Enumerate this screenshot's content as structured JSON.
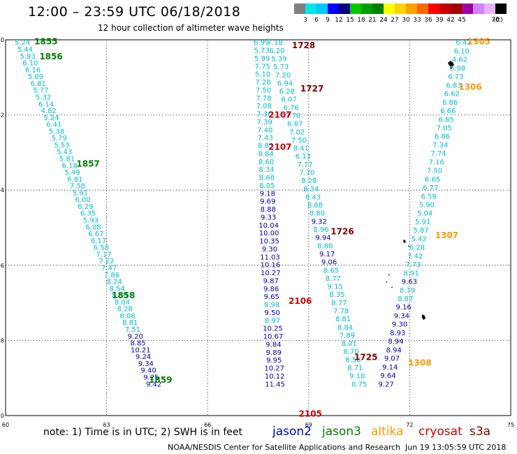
{
  "title": "12:00  –  23:59  UTC  06/18/2018",
  "subtitle": "12 hour collection of altimeter wave heights",
  "note": "note:  1) Time is in UTC;  2) SWH is in feet",
  "credit": "NOAA/NESDIS Center for Satellite Applications and Research",
  "timestamp": "Jun 19 13:05:59 UTC 2018",
  "satellites": [
    {
      "name": "jason2",
      "color": "#0000cc"
    },
    {
      "name": "jason3",
      "color": "#008000"
    },
    {
      "name": "altika",
      "color": "#ff9900"
    },
    {
      "name": "cryosat",
      "color": "#cc0000"
    },
    {
      "name": "s3a",
      "color": "#800000"
    }
  ],
  "legend": {
    "unit": "(ft)",
    "colors": [
      "#808080",
      "#00e5e5",
      "#00c8ff",
      "#0000ff",
      "#00007f",
      "#00c800",
      "#00a000",
      "#008000",
      "#ffff00",
      "#ffd200",
      "#ffa000",
      "#ff6400",
      "#ff0000",
      "#c80000",
      "#a00000",
      "#a000a0",
      "#d280ff",
      "#e6b4ff",
      "#000000"
    ],
    "labels": [
      "3",
      "6",
      "9",
      "12",
      "15",
      "18",
      "21",
      "24",
      "27",
      "30",
      "33",
      "36",
      "39",
      "42",
      "45",
      "70"
    ]
  },
  "axes": {
    "x_range": [
      60,
      75
    ],
    "y_range": [
      -10,
      0
    ],
    "x_ticks": [
      "60",
      "63",
      "66",
      "69",
      "72",
      "75"
    ],
    "y_ticks": [
      "0",
      "-2",
      "-4",
      "-6",
      "-8",
      "-10"
    ],
    "grid": "dotted"
  },
  "value_colors": {
    "c": "#00bcd4",
    "b": "#0000b0"
  },
  "tracks": [
    {
      "id": "track-1855-1859",
      "start": [
        60.5,
        -0.06
      ],
      "end": [
        64.4,
        -9.15
      ],
      "values": [
        [
          "5.24",
          "c"
        ],
        [
          "5.44",
          "c"
        ],
        [
          "5.93",
          "c"
        ],
        [
          "6.10",
          "c"
        ],
        [
          "6.16",
          "c"
        ],
        [
          "5.09",
          "c"
        ],
        [
          "6.81",
          "c"
        ],
        [
          "5.77",
          "c"
        ],
        [
          "5.32",
          "c"
        ],
        [
          "6.14",
          "c"
        ],
        [
          "4.82",
          "c"
        ],
        [
          "5.24",
          "c"
        ],
        [
          "6.41",
          "c"
        ],
        [
          "5.38",
          "c"
        ],
        [
          "5.79",
          "c"
        ],
        [
          "5.53",
          "c"
        ],
        [
          "5.43",
          "c"
        ],
        [
          "5.81",
          "c"
        ],
        [
          "6.18",
          "c"
        ],
        [
          "5.49",
          "c"
        ],
        [
          "6.81",
          "c"
        ],
        [
          "7.58",
          "c"
        ],
        [
          "5.91",
          "c"
        ],
        [
          "6.00",
          "c"
        ],
        [
          "6.29",
          "c"
        ],
        [
          "6.35",
          "c"
        ],
        [
          "5.93",
          "c"
        ],
        [
          "6.08",
          "c"
        ],
        [
          "6.67",
          "c"
        ],
        [
          "6.17",
          "c"
        ],
        [
          "6.58",
          "c"
        ],
        [
          "7.17",
          "c"
        ],
        [
          "7.22",
          "c"
        ],
        [
          "7.47",
          "c"
        ],
        [
          "7.86",
          "c"
        ],
        [
          "8.24",
          "c"
        ],
        [
          "8.54",
          "c"
        ],
        [
          "8.66",
          "c"
        ],
        [
          "8.04",
          "c"
        ],
        [
          "8.28",
          "c"
        ],
        [
          "8.08",
          "c"
        ],
        [
          "8.81",
          "c"
        ],
        [
          "7.51",
          "c"
        ],
        [
          "9.20",
          "b"
        ],
        [
          "8.85",
          "b"
        ],
        [
          "10.21",
          "b"
        ],
        [
          "9.24",
          "b"
        ],
        [
          "9.34",
          "b"
        ],
        [
          "9.40",
          "b"
        ],
        [
          "9.25",
          "b"
        ],
        [
          "9.42",
          "b"
        ]
      ]
    },
    {
      "id": "track-2105-2107",
      "start": [
        67.6,
        -0.06
      ],
      "end": [
        68.0,
        -9.15
      ],
      "values": [
        [
          "6.99",
          "c"
        ],
        [
          "5.73",
          "c"
        ],
        [
          "5.99",
          "c"
        ],
        [
          "7.75",
          "c"
        ],
        [
          "5.10",
          "c"
        ],
        [
          "7.28",
          "c"
        ],
        [
          "7.50",
          "c"
        ],
        [
          "7.78",
          "c"
        ],
        [
          "7.08",
          "c"
        ],
        [
          "7.36",
          "c"
        ],
        [
          "7.39",
          "c"
        ],
        [
          "7.40",
          "c"
        ],
        [
          "7.43",
          "c"
        ],
        [
          "8.83",
          "c"
        ],
        [
          "8.84",
          "c"
        ],
        [
          "8.60",
          "c"
        ],
        [
          "8.34",
          "c"
        ],
        [
          "8.68",
          "c"
        ],
        [
          "8.05",
          "c"
        ],
        [
          "9.18",
          "b"
        ],
        [
          "9.69",
          "b"
        ],
        [
          "8.88",
          "b"
        ],
        [
          "9.33",
          "b"
        ],
        [
          "10.04",
          "b"
        ],
        [
          "10.00",
          "b"
        ],
        [
          "10.35",
          "b"
        ],
        [
          "9.30",
          "b"
        ],
        [
          "11.03",
          "b"
        ],
        [
          "10.16",
          "b"
        ],
        [
          "10.27",
          "b"
        ],
        [
          "9.87",
          "b"
        ],
        [
          "9.86",
          "b"
        ],
        [
          "9.65",
          "b"
        ],
        [
          "8.98",
          "c"
        ],
        [
          "9.50",
          "b"
        ],
        [
          "8.97",
          "c"
        ],
        [
          "10.25",
          "b"
        ],
        [
          "10.67",
          "b"
        ],
        [
          "9.84",
          "b"
        ],
        [
          "9.89",
          "b"
        ],
        [
          "9.95",
          "b"
        ],
        [
          "10.27",
          "b"
        ],
        [
          "10.12",
          "b"
        ],
        [
          "11.45",
          "b"
        ]
      ]
    },
    {
      "id": "track-1725-1728",
      "start": [
        68.0,
        -0.06
      ],
      "end": [
        70.5,
        -9.15
      ],
      "values": [
        [
          "7.18",
          "c"
        ],
        [
          "6.20",
          "c"
        ],
        [
          "5.39",
          "c"
        ],
        [
          "5.73",
          "c"
        ],
        [
          "7.20",
          "c"
        ],
        [
          "6.94",
          "c"
        ],
        [
          "6.28",
          "c"
        ],
        [
          "6.07",
          "c"
        ],
        [
          "6.76",
          "c"
        ],
        [
          "7.70",
          "c"
        ],
        [
          "6.67",
          "c"
        ],
        [
          "7.02",
          "c"
        ],
        [
          "7.50",
          "c"
        ],
        [
          "8.41",
          "c"
        ],
        [
          "6.13",
          "c"
        ],
        [
          "7.77",
          "c"
        ],
        [
          "7.70",
          "c"
        ],
        [
          "8.28",
          "c"
        ],
        [
          "8.34",
          "c"
        ],
        [
          "8.43",
          "c"
        ],
        [
          "8.68",
          "c"
        ],
        [
          "8.80",
          "c"
        ],
        [
          "9.32",
          "b"
        ],
        [
          "8.96",
          "c"
        ],
        [
          "9.94",
          "b"
        ],
        [
          "8.80",
          "c"
        ],
        [
          "9.17",
          "b"
        ],
        [
          "9.06",
          "b"
        ],
        [
          "8.65",
          "c"
        ],
        [
          "8.77",
          "c"
        ],
        [
          "9.15",
          "c"
        ],
        [
          "8.35",
          "c"
        ],
        [
          "8.77",
          "c"
        ],
        [
          "7.78",
          "c"
        ],
        [
          "8.81",
          "c"
        ],
        [
          "8.84",
          "c"
        ],
        [
          "7.89",
          "c"
        ],
        [
          "8.01",
          "c"
        ],
        [
          "8.70",
          "c"
        ],
        [
          "8.58",
          "c"
        ],
        [
          "8.71",
          "c"
        ],
        [
          "9.10",
          "c"
        ],
        [
          "8.75",
          "c"
        ]
      ]
    },
    {
      "id": "track-1305-1308",
      "start": [
        73.6,
        -0.06
      ],
      "end": [
        71.3,
        -9.15
      ],
      "values": [
        [
          "6.42",
          "c"
        ],
        [
          "6.10",
          "c"
        ],
        [
          "4.62",
          "c"
        ],
        [
          "5.98",
          "c"
        ],
        [
          "6.73",
          "c"
        ],
        [
          "6.83",
          "c"
        ],
        [
          "6.62",
          "c"
        ],
        [
          "6.86",
          "c"
        ],
        [
          "6.66",
          "c"
        ],
        [
          "6.85",
          "c"
        ],
        [
          "7.05",
          "c"
        ],
        [
          "6.86",
          "c"
        ],
        [
          "7.34",
          "c"
        ],
        [
          "7.74",
          "c"
        ],
        [
          "7.16",
          "c"
        ],
        [
          "7.50",
          "c"
        ],
        [
          "6.65",
          "c"
        ],
        [
          "6.77",
          "c"
        ],
        [
          "6.59",
          "c"
        ],
        [
          "5.90",
          "c"
        ],
        [
          "5.04",
          "c"
        ],
        [
          "5.91",
          "c"
        ],
        [
          "5.87",
          "c"
        ],
        [
          "5.42",
          "c"
        ],
        [
          "6.28",
          "c"
        ],
        [
          "7.42",
          "c"
        ],
        [
          "7.73",
          "c"
        ],
        [
          "8.91",
          "c"
        ],
        [
          "9.63",
          "b"
        ],
        [
          "8.79",
          "c"
        ],
        [
          "8.87",
          "c"
        ],
        [
          "9.16",
          "b"
        ],
        [
          "9.34",
          "b"
        ],
        [
          "9.30",
          "b"
        ],
        [
          "8.93",
          "b"
        ],
        [
          "8.94",
          "b"
        ],
        [
          "8.94",
          "b"
        ],
        [
          "9.07",
          "b"
        ],
        [
          "9.14",
          "b"
        ],
        [
          "9.64",
          "b"
        ],
        [
          "9.27",
          "b"
        ]
      ]
    }
  ],
  "pass_labels": [
    {
      "text": "1855",
      "x": 61.2,
      "y": -0.05,
      "sat": "jason3"
    },
    {
      "text": "1856",
      "x": 61.35,
      "y": -0.45,
      "sat": "jason3"
    },
    {
      "text": "1857",
      "x": 62.45,
      "y": -3.3,
      "sat": "jason3"
    },
    {
      "text": "1858",
      "x": 63.5,
      "y": -6.8,
      "sat": "jason3"
    },
    {
      "text": "1859",
      "x": 64.6,
      "y": -9.05,
      "sat": "jason3"
    },
    {
      "text": "1728",
      "x": 68.85,
      "y": -0.15,
      "sat": "s3a"
    },
    {
      "text": "1727",
      "x": 69.1,
      "y": -1.3,
      "sat": "s3a"
    },
    {
      "text": "1726",
      "x": 70.0,
      "y": -5.1,
      "sat": "s3a"
    },
    {
      "text": "1725",
      "x": 70.7,
      "y": -8.45,
      "sat": "s3a"
    },
    {
      "text": "2107",
      "x": 68.15,
      "y": -2.0,
      "sat": "cryosat"
    },
    {
      "text": "2107",
      "x": 68.15,
      "y": -2.85,
      "sat": "cryosat"
    },
    {
      "text": "2106",
      "x": 68.75,
      "y": -6.95,
      "sat": "cryosat"
    },
    {
      "text": "2105",
      "x": 69.05,
      "y": -9.95,
      "sat": "cryosat"
    },
    {
      "text": "1305",
      "x": 74.05,
      "y": -0.05,
      "sat": "altika"
    },
    {
      "text": "1306",
      "x": 73.8,
      "y": -1.25,
      "sat": "altika"
    },
    {
      "text": "1307",
      "x": 73.1,
      "y": -5.2,
      "sat": "altika"
    },
    {
      "text": "1308",
      "x": 72.3,
      "y": -8.6,
      "sat": "altika"
    }
  ]
}
